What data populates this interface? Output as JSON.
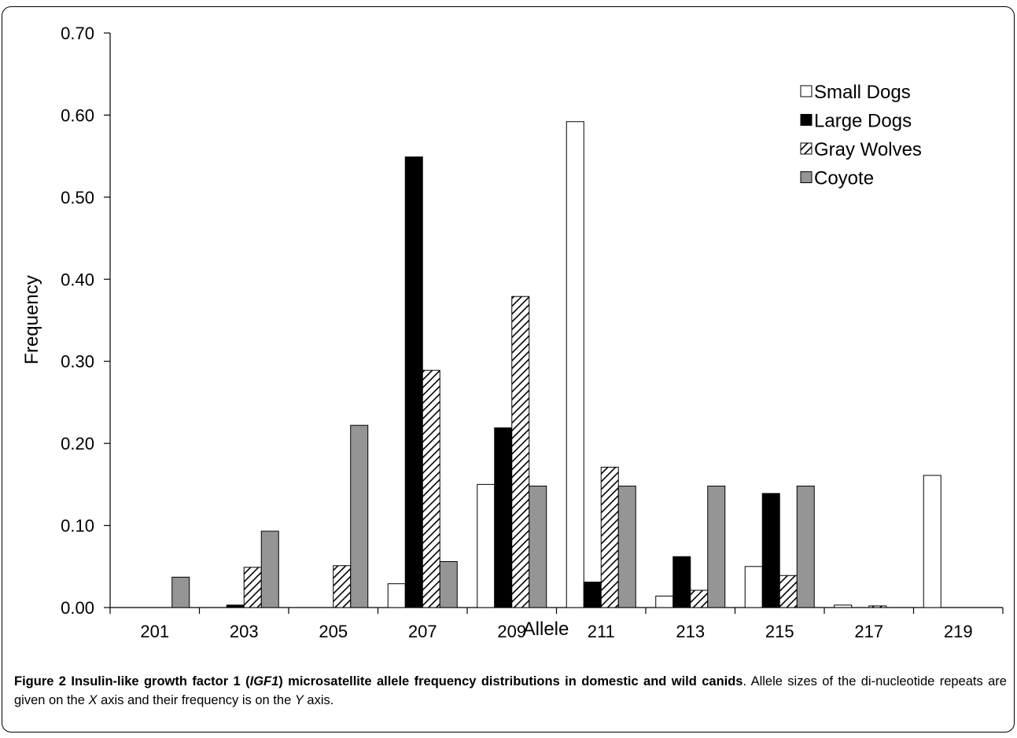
{
  "caption": {
    "label": "Figure 2",
    "title_before_italic": "Insulin-like growth factor 1 (",
    "title_italic": "IGF1",
    "title_after_italic": ") microsatellite allele frequency distributions in domestic and wild canids",
    "title_end": ".",
    "body_part1": " Allele sizes of the di-nucleotide repeats are given on the ",
    "body_x": "X",
    "body_part2": " axis and their frequency is on the ",
    "body_y": "Y",
    "body_part3": " axis."
  },
  "chart_data": {
    "type": "bar",
    "xlabel": "Allele",
    "ylabel": "Frequency",
    "ylim": [
      0,
      0.7
    ],
    "yticks": [
      "0.00",
      "0.10",
      "0.20",
      "0.30",
      "0.40",
      "0.50",
      "0.60",
      "0.70"
    ],
    "categories": [
      "201",
      "203",
      "205",
      "207",
      "209",
      "211",
      "213",
      "215",
      "217",
      "219"
    ],
    "legend_position": "top-right",
    "series": [
      {
        "name": "Small Dogs",
        "style": "white",
        "color": "#ffffff",
        "values": [
          0,
          0,
          0,
          0.029,
          0.15,
          0.592,
          0.014,
          0.05,
          0.003,
          0.161
        ]
      },
      {
        "name": "Large Dogs",
        "style": "black",
        "color": "#000000",
        "values": [
          0,
          0.003,
          0,
          0.549,
          0.219,
          0.031,
          0.062,
          0.139,
          0,
          0
        ]
      },
      {
        "name": "Gray Wolves",
        "style": "hatch",
        "color": "#ffffff",
        "values": [
          0,
          0.049,
          0.051,
          0.289,
          0.379,
          0.171,
          0.021,
          0.039,
          0.002,
          0
        ]
      },
      {
        "name": "Coyote",
        "style": "gray",
        "color": "#959595",
        "values": [
          0.037,
          0.093,
          0.222,
          0.056,
          0.148,
          0.148,
          0.148,
          0.148,
          0,
          0
        ]
      }
    ]
  }
}
